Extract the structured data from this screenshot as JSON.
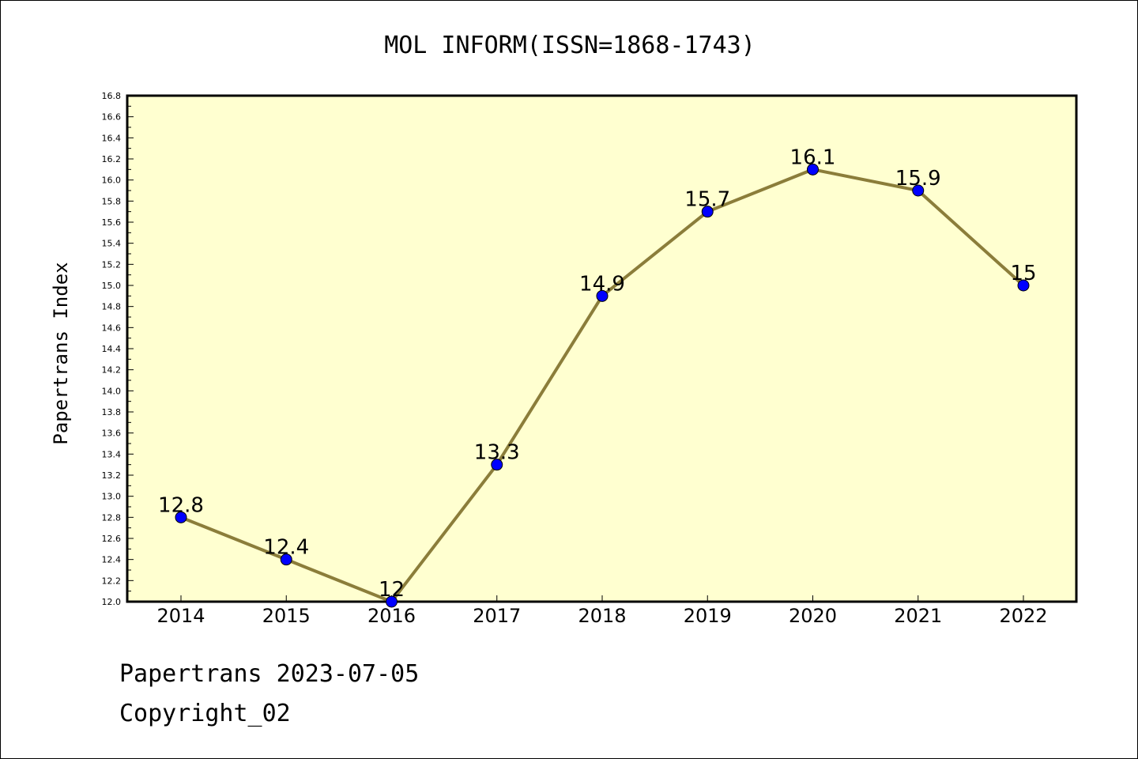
{
  "chart_data": {
    "type": "line",
    "title": "MOL INFORM(ISSN=1868-1743)",
    "xlabel": "",
    "ylabel": "Papertrans Index",
    "categories": [
      "2014",
      "2015",
      "2016",
      "2017",
      "2018",
      "2019",
      "2020",
      "2021",
      "2022"
    ],
    "values": [
      12.8,
      12.4,
      12.0,
      13.3,
      14.9,
      15.7,
      16.1,
      15.9,
      15.0
    ],
    "data_labels": [
      "12.8",
      "12.4",
      "12",
      "13.3",
      "14.9",
      "15.7",
      "16.1",
      "15.9",
      "15"
    ],
    "ylim": [
      12.0,
      16.8
    ],
    "yticks": [
      "12.0",
      "12.2",
      "12.4",
      "12.6",
      "12.8",
      "13.0",
      "13.2",
      "13.4",
      "13.6",
      "13.8",
      "14.0",
      "14.2",
      "14.4",
      "14.6",
      "14.8",
      "15.0",
      "15.2",
      "15.4",
      "15.6",
      "15.8",
      "16.0",
      "16.2",
      "16.4",
      "16.6",
      "16.8"
    ],
    "grid": false,
    "line_color": "#8b7d3a",
    "marker_color": "#0000ff",
    "plot_background": "#ffffd0"
  },
  "footer": {
    "line1": "Papertrans 2023-07-05",
    "line2": "Copyright_02"
  }
}
